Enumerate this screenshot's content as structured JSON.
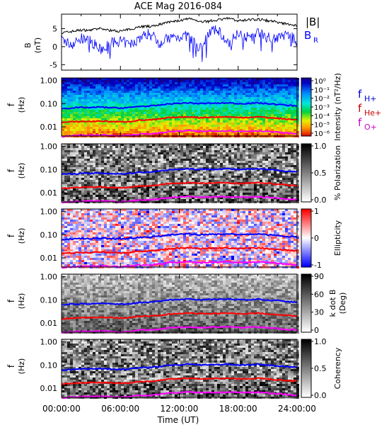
{
  "title": "ACE Mag 2016-084",
  "x_axis": {
    "label": "Time (UT)",
    "ticks": [
      "00:00:00",
      "06:00:00",
      "12:00:00",
      "18:00:00",
      "24:00:00"
    ],
    "tick_hours": [
      0,
      6,
      12,
      18,
      24
    ]
  },
  "colors": {
    "btot": "#000000",
    "br": "#0000ff",
    "fH": "#0000ff",
    "fHe": "#ff0000",
    "fO": "#ff00ff",
    "legend_fH": "#0000cc",
    "legend_fHe": "#cc0000",
    "legend_fO": "#cc00cc"
  },
  "legend": {
    "btot": "|B|",
    "br_main": "B",
    "br_sub": "R",
    "fH_main": "f",
    "fH_sub": "H+",
    "fHe_main": "f",
    "fHe_sub": "He+",
    "fO_main": "f",
    "fO_sub": "O+"
  },
  "panel_b": {
    "ylabel_line1": "B",
    "ylabel_line2": "(nT)",
    "yticks": [
      "5",
      "0",
      "-5"
    ],
    "ytick_values": [
      5,
      0,
      -5
    ]
  },
  "freq_axis": {
    "ylabel_line1": "f",
    "ylabel_line2": "(Hz)",
    "ticks": [
      "1.00",
      "0.10",
      "0.01"
    ],
    "tick_values": [
      1.0,
      0.1,
      0.01
    ]
  },
  "colorbars": {
    "intensity": {
      "label": "Intensity (nT²/Hz)",
      "ticks": [
        "10⁰",
        "10⁻¹",
        "10⁻²",
        "10⁻³",
        "10⁻⁴",
        "10⁻⁵",
        "10⁻⁶"
      ],
      "tick_exponents": [
        0,
        -1,
        -2,
        -3,
        -4,
        -5,
        -6
      ]
    },
    "polarization": {
      "label": "% Polarization",
      "ticks": [
        "1.0",
        "0.5",
        "0.0"
      ]
    },
    "ellipticity": {
      "label": "Ellipticity",
      "ticks": [
        "1",
        "0",
        "-1"
      ]
    },
    "kdotb": {
      "label_line1": "k dot B",
      "label_line2": "(Deg)",
      "ticks": [
        "90",
        "60",
        "30",
        "0"
      ]
    },
    "coherency": {
      "label": "Coherency",
      "ticks": [
        "1.0",
        "0.5",
        "0.0"
      ]
    }
  },
  "chart_data": [
    {
      "type": "line",
      "panel": "magnetic-field",
      "xlabel": "Time (UT)",
      "ylabel": "B (nT)",
      "xlim": [
        0,
        24
      ],
      "ylim": [
        -6.5,
        9
      ],
      "x": [
        0,
        1,
        2,
        3,
        4,
        5,
        6,
        7,
        8,
        9,
        10,
        11,
        12,
        13,
        14,
        15,
        16,
        17,
        18,
        19,
        20,
        21,
        22,
        23,
        24
      ],
      "series": [
        {
          "name": "|B|",
          "values": [
            3.8,
            4.2,
            4.6,
            4.6,
            5.0,
            4.5,
            4.3,
            4.8,
            5.6,
            5.6,
            6.2,
            6.8,
            7.2,
            7.7,
            7.0,
            7.0,
            7.5,
            7.8,
            7.2,
            7.4,
            7.6,
            7.2,
            6.8,
            6.2,
            5.8
          ]
        },
        {
          "name": "B_R",
          "values": [
            2.0,
            0.5,
            2.2,
            1.5,
            -1.0,
            1.0,
            1.5,
            0.5,
            2.5,
            3.8,
            1.0,
            2.5,
            2.8,
            3.0,
            -1.0,
            4.0,
            4.6,
            0.5,
            4.2,
            2.5,
            4.0,
            3.0,
            2.2,
            3.5,
            1.5
          ]
        }
      ]
    },
    {
      "type": "line",
      "panel": "characteristic-frequencies",
      "xlabel": "Time (UT)",
      "ylabel": "f (Hz)",
      "yscale": "log",
      "xlim": [
        0,
        24
      ],
      "ylim": [
        0.004,
        1.3
      ],
      "x": [
        0,
        1,
        2,
        3,
        4,
        5,
        6,
        7,
        8,
        9,
        10,
        11,
        12,
        13,
        14,
        15,
        16,
        17,
        18,
        19,
        20,
        21,
        22,
        23,
        24
      ],
      "series": [
        {
          "name": "f H+",
          "values": [
            0.061,
            0.065,
            0.068,
            0.068,
            0.071,
            0.067,
            0.065,
            0.068,
            0.078,
            0.078,
            0.086,
            0.099,
            0.103,
            0.109,
            0.1,
            0.104,
            0.105,
            0.108,
            0.1,
            0.103,
            0.107,
            0.1,
            0.093,
            0.085,
            0.08
          ]
        },
        {
          "name": "f He+",
          "values": [
            0.0153,
            0.0163,
            0.017,
            0.017,
            0.0178,
            0.0168,
            0.0163,
            0.017,
            0.0195,
            0.0195,
            0.0215,
            0.0248,
            0.0258,
            0.0273,
            0.025,
            0.026,
            0.0263,
            0.027,
            0.025,
            0.0258,
            0.0268,
            0.025,
            0.0233,
            0.0213,
            0.02
          ]
        },
        {
          "name": "f O+",
          "values": [
            0.0038,
            0.0041,
            0.0043,
            0.0043,
            0.0045,
            0.0042,
            0.0041,
            0.0043,
            0.0049,
            0.0049,
            0.0054,
            0.0062,
            0.0065,
            0.0068,
            0.0063,
            0.0065,
            0.0066,
            0.0068,
            0.0063,
            0.0065,
            0.0067,
            0.0063,
            0.0058,
            0.0053,
            0.005
          ]
        }
      ]
    }
  ]
}
